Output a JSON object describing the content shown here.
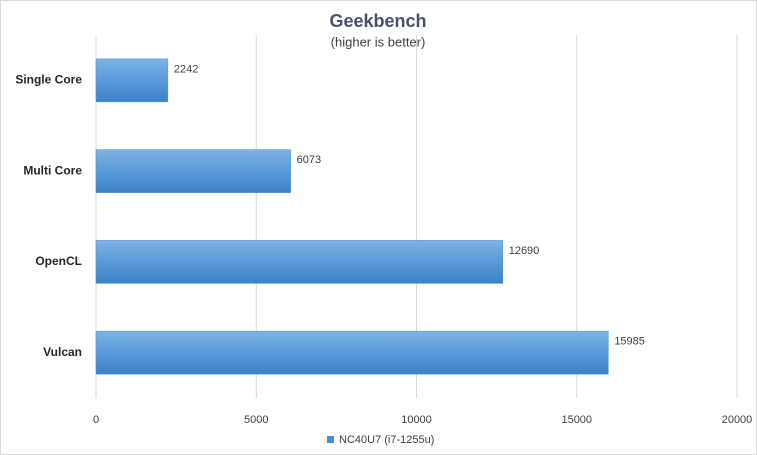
{
  "chart_data": {
    "type": "hbar",
    "title": "Geekbench",
    "subtitle": "(higher is better)",
    "categories": [
      "Single Core",
      "Multi Core",
      "OpenCL",
      "Vulcan"
    ],
    "series": [
      {
        "name": "NC40U7 (i7-1255u)",
        "color": "#4a90d4",
        "values": [
          2242,
          6073,
          12690,
          15985
        ]
      }
    ],
    "xlim": [
      0,
      20000
    ],
    "xticks": [
      0,
      5000,
      10000,
      15000,
      20000
    ],
    "grid": true,
    "legend": "bottom"
  }
}
